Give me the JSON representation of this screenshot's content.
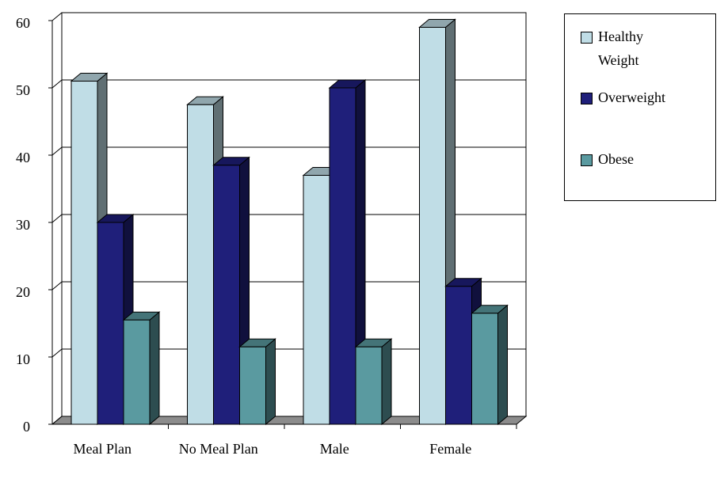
{
  "chart_data": {
    "type": "bar3d",
    "categories": [
      "Meal Plan",
      "No Meal Plan",
      "Male",
      "Female"
    ],
    "series": [
      {
        "name": "Healthy Weight",
        "color": "#c0dde6",
        "values": [
          51,
          47.5,
          37,
          59
        ]
      },
      {
        "name": "Overweight",
        "color": "#1f1f7a",
        "values": [
          30,
          38.5,
          50,
          20.5
        ]
      },
      {
        "name": "Obese",
        "color": "#5a9aa0",
        "values": [
          15.5,
          11.5,
          11.5,
          16.5
        ]
      }
    ],
    "ylim": [
      0,
      60
    ],
    "yticks": [
      0,
      10,
      20,
      30,
      40,
      50,
      60
    ],
    "grid": true
  }
}
